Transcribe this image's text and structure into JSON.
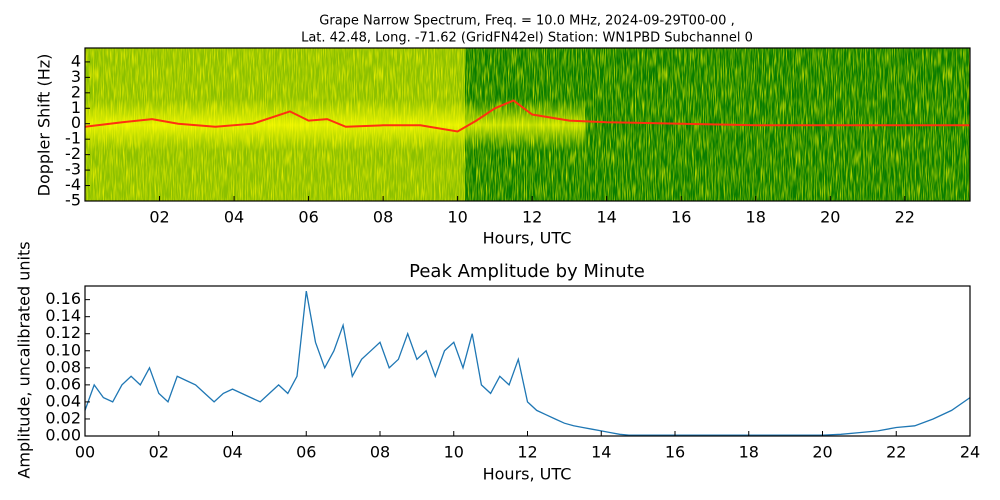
{
  "chart_data": [
    {
      "type": "spectrogram",
      "title": [
        "Grape Narrow Spectrum, Freq. = 10.0 MHz, 2024-09-29T00-00 ,",
        "Lat.  42.48, Long. -71.62 (GridFN42el) Station: WN1PBD Subchannel 0"
      ],
      "xlabel": "Hours, UTC",
      "ylabel": "Doppler Shift (Hz)",
      "xlim": [
        0,
        23.75
      ],
      "ylim": [
        -5,
        4.9
      ],
      "xticks": [
        {
          "value": 2,
          "label": "02"
        },
        {
          "value": 4,
          "label": "04"
        },
        {
          "value": 6,
          "label": "06"
        },
        {
          "value": 8,
          "label": "08"
        },
        10,
        12,
        14,
        16,
        18,
        20,
        22
      ],
      "yticks": [
        -5,
        -4,
        -3,
        -2,
        -1,
        0,
        1,
        2,
        3,
        4
      ],
      "color": "#ff3010",
      "x": [
        0,
        1,
        1.8,
        2.5,
        3.5,
        4.5,
        5.5,
        6,
        6.5,
        7,
        8,
        9,
        10,
        10.5,
        11,
        11.5,
        12,
        13,
        14,
        16,
        18,
        20,
        22,
        23.75
      ],
      "values": [
        -0.2,
        0.1,
        0.3,
        0,
        -0.2,
        0,
        0.8,
        0.2,
        0.3,
        -0.2,
        -0.1,
        -0.1,
        -0.5,
        0.2,
        1,
        1.5,
        0.6,
        0.2,
        0.1,
        0,
        -0.1,
        -0.1,
        -0.1,
        -0.1
      ]
    },
    {
      "type": "line",
      "title": "Peak Amplitude by Minute",
      "xlabel": "Hours, UTC",
      "ylabel": "Amplitude, uncalibrated units",
      "xlim": [
        0,
        24
      ],
      "ylim": [
        0,
        0.176
      ],
      "xticks": [
        {
          "value": 0,
          "label": "00"
        },
        {
          "value": 2,
          "label": "02"
        },
        {
          "value": 4,
          "label": "04"
        },
        {
          "value": 6,
          "label": "06"
        },
        {
          "value": 8,
          "label": "08"
        },
        10,
        12,
        14,
        16,
        18,
        20,
        22,
        24
      ],
      "yticks": [
        {
          "value": 0,
          "label": "0.00"
        },
        {
          "value": 0.02,
          "label": "0.02"
        },
        {
          "value": 0.04,
          "label": "0.04"
        },
        {
          "value": 0.06,
          "label": "0.06"
        },
        {
          "value": 0.08,
          "label": "0.08"
        },
        {
          "value": 0.1,
          "label": "0.10"
        },
        {
          "value": 0.12,
          "label": "0.12"
        },
        {
          "value": 0.14,
          "label": "0.14"
        },
        {
          "value": 0.16,
          "label": "0.16"
        }
      ],
      "color": "#1f77b4",
      "x": [
        0,
        0.25,
        0.5,
        0.75,
        1,
        1.25,
        1.5,
        1.75,
        2,
        2.25,
        2.5,
        2.75,
        3,
        3.25,
        3.5,
        3.75,
        4,
        4.25,
        4.5,
        4.75,
        5,
        5.25,
        5.5,
        5.75,
        6,
        6.25,
        6.5,
        6.75,
        7,
        7.25,
        7.5,
        7.75,
        8,
        8.25,
        8.5,
        8.75,
        9,
        9.25,
        9.5,
        9.75,
        10,
        10.25,
        10.5,
        10.75,
        11,
        11.25,
        11.5,
        11.75,
        12,
        12.25,
        12.5,
        12.75,
        13,
        13.25,
        13.5,
        13.75,
        14,
        14.25,
        14.5,
        14.75,
        15,
        16,
        17,
        18,
        19,
        20,
        20.5,
        21,
        21.5,
        22,
        22.5,
        23,
        23.5,
        24
      ],
      "values": [
        0.03,
        0.06,
        0.045,
        0.04,
        0.06,
        0.07,
        0.06,
        0.08,
        0.05,
        0.04,
        0.07,
        0.065,
        0.06,
        0.05,
        0.04,
        0.05,
        0.055,
        0.05,
        0.045,
        0.04,
        0.05,
        0.06,
        0.05,
        0.07,
        0.17,
        0.11,
        0.08,
        0.1,
        0.13,
        0.07,
        0.09,
        0.1,
        0.11,
        0.08,
        0.09,
        0.12,
        0.09,
        0.1,
        0.07,
        0.1,
        0.11,
        0.08,
        0.12,
        0.06,
        0.05,
        0.07,
        0.06,
        0.09,
        0.04,
        0.03,
        0.025,
        0.02,
        0.015,
        0.012,
        0.01,
        0.008,
        0.006,
        0.004,
        0.002,
        0.001,
        0.001,
        0.001,
        0.001,
        0.001,
        0.001,
        0.001,
        0.002,
        0.004,
        0.006,
        0.01,
        0.012,
        0.02,
        0.03,
        0.045
      ]
    }
  ]
}
